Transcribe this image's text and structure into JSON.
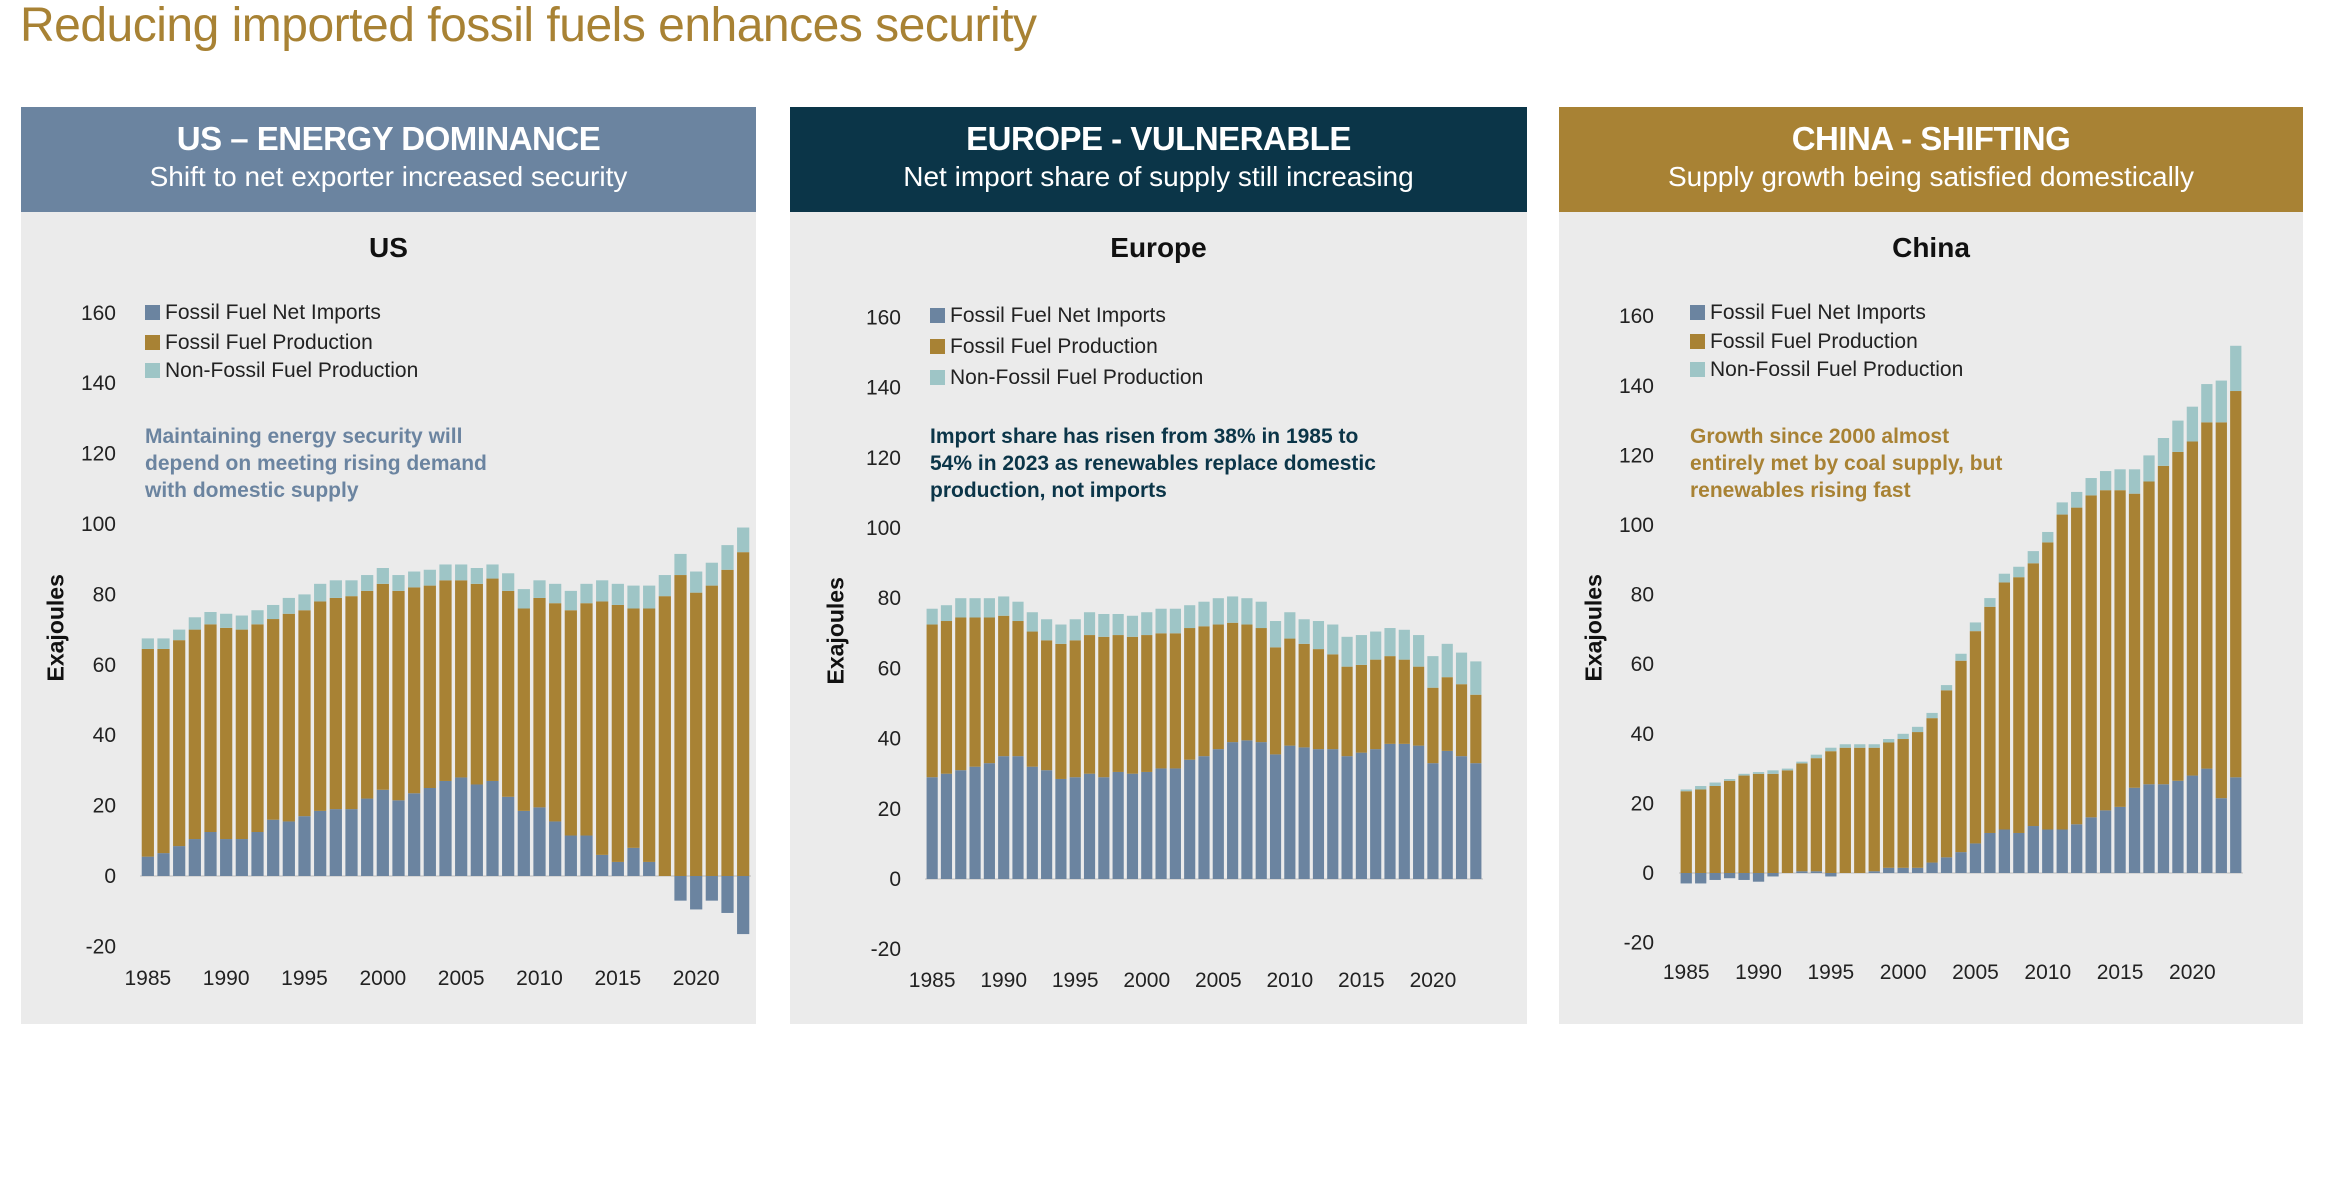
{
  "title": "Reducing imported fossil fuels enhances security",
  "colors": {
    "imports": "#6b84a0",
    "fossil": "#a88234",
    "nonfossil": "#9ec5c6",
    "us_header": "#6b84a0",
    "europe_header": "#0b3548",
    "china_header": "#a88234",
    "panel_bg": "#ebebeb"
  },
  "panels": [
    {
      "header_title": "US – ENERGY DOMINANCE",
      "header_subtitle": "Shift to net exporter increased security",
      "annotation": [
        "Maintaining energy security will",
        "depend on meeting rising demand",
        "with domestic supply"
      ]
    },
    {
      "header_title": "EUROPE - VULNERABLE",
      "header_subtitle": "Net import share of supply still increasing",
      "annotation": [
        "Import share has risen from 38% in 1985 to",
        "54% in 2023 as renewables replace domestic",
        "production, not imports"
      ]
    },
    {
      "header_title": "CHINA - SHIFTING",
      "header_subtitle": "Supply growth being satisfied domestically",
      "annotation": [
        "Growth since 2000  almost",
        "entirely met by coal supply, but",
        "renewables rising fast"
      ]
    }
  ],
  "chart_data": [
    {
      "type": "bar",
      "stacked": true,
      "title": "US",
      "ylabel": "Exajoules",
      "ylim": [
        -20,
        160
      ],
      "yticks": [
        -20,
        0,
        20,
        40,
        60,
        80,
        100,
        120,
        140,
        160
      ],
      "xtick_labels": [
        "1985",
        "1990",
        "1995",
        "2000",
        "2005",
        "2010",
        "2015",
        "2020"
      ],
      "x": [
        1985,
        1986,
        1987,
        1988,
        1989,
        1990,
        1991,
        1992,
        1993,
        1994,
        1995,
        1996,
        1997,
        1998,
        1999,
        2000,
        2001,
        2002,
        2003,
        2004,
        2005,
        2006,
        2007,
        2008,
        2009,
        2010,
        2011,
        2012,
        2013,
        2014,
        2015,
        2016,
        2017,
        2018,
        2019,
        2020,
        2021,
        2022,
        2023
      ],
      "legend": "top-left",
      "series": [
        {
          "name": "Fossil Fuel Net Imports",
          "values": [
            5.5,
            6.5,
            8.5,
            10.5,
            12.5,
            10.5,
            10.5,
            12.5,
            16,
            15.5,
            17,
            18.5,
            19,
            19,
            22,
            24.5,
            21.5,
            23.5,
            25,
            27,
            28,
            26,
            27,
            22.5,
            18.5,
            19.5,
            15.5,
            11.5,
            11.5,
            6,
            4,
            8,
            4,
            0,
            -7,
            -9.5,
            -7,
            -10.5,
            -16.5
          ]
        },
        {
          "name": "Fossil Fuel Production",
          "values": [
            59,
            58,
            58.5,
            59.5,
            59,
            60,
            59.5,
            59,
            57,
            59,
            58.5,
            59.5,
            60,
            60.5,
            59,
            58.5,
            59.5,
            58.5,
            57.5,
            57,
            56,
            57,
            57.5,
            58.5,
            57.5,
            59.5,
            62,
            64,
            66,
            72,
            73,
            68,
            72,
            79.5,
            85.5,
            80.5,
            82.5,
            87,
            92
          ]
        },
        {
          "name": "Non-Fossil Fuel Production",
          "values": [
            3,
            3,
            3,
            3.5,
            3.5,
            4,
            4,
            4,
            4,
            4.5,
            4.5,
            5,
            5,
            4.5,
            4.5,
            4.5,
            4.5,
            4.5,
            4.5,
            4.5,
            4.5,
            4.5,
            4,
            5,
            5.5,
            5,
            5.5,
            5.5,
            5.5,
            6,
            6,
            6.5,
            6.5,
            6,
            6,
            6,
            6.5,
            7,
            7
          ]
        }
      ]
    },
    {
      "type": "bar",
      "stacked": true,
      "title": "Europe",
      "ylabel": "Exajoules",
      "ylim": [
        -20,
        160
      ],
      "yticks": [
        -20,
        0,
        20,
        40,
        60,
        80,
        100,
        120,
        140,
        160
      ],
      "xtick_labels": [
        "1985",
        "1990",
        "1995",
        "2000",
        "2005",
        "2010",
        "2015",
        "2020"
      ],
      "x": [
        1985,
        1986,
        1987,
        1988,
        1989,
        1990,
        1991,
        1992,
        1993,
        1994,
        1995,
        1996,
        1997,
        1998,
        1999,
        2000,
        2001,
        2002,
        2003,
        2004,
        2005,
        2006,
        2007,
        2008,
        2009,
        2010,
        2011,
        2012,
        2013,
        2014,
        2015,
        2016,
        2017,
        2018,
        2019,
        2020,
        2021,
        2022,
        2023
      ],
      "legend": "top-left",
      "series": [
        {
          "name": "Fossil Fuel Net Imports",
          "values": [
            29,
            30,
            31,
            32,
            33,
            35,
            35,
            32,
            31,
            28.5,
            29,
            30,
            29,
            30.5,
            30,
            30.5,
            31.5,
            31.5,
            34,
            35,
            37,
            39,
            39.5,
            39,
            35.5,
            38,
            37.5,
            37,
            37,
            35,
            36,
            37,
            38.5,
            38.5,
            38,
            33,
            36.5,
            35,
            33
          ]
        },
        {
          "name": "Fossil Fuel Production",
          "values": [
            43.5,
            43.5,
            43.5,
            42.5,
            41.5,
            40,
            38.5,
            38.5,
            37,
            38.5,
            39,
            39.5,
            40,
            39,
            39,
            39,
            38.5,
            38.5,
            37.5,
            37,
            35.5,
            34,
            33,
            32.5,
            30.5,
            30.5,
            29.5,
            28.5,
            27,
            25.5,
            25,
            25.5,
            25,
            24,
            22.5,
            21.5,
            21,
            20.5,
            19.5
          ]
        },
        {
          "name": "Non-Fossil Fuel Production",
          "values": [
            4.5,
            4.5,
            5.5,
            5.5,
            5.5,
            5.5,
            5.5,
            5.5,
            6,
            5.5,
            6,
            6.5,
            6.5,
            6,
            6,
            6.5,
            7,
            7,
            6.5,
            7,
            7.5,
            7.5,
            7.5,
            7.5,
            7.5,
            7.5,
            7,
            8,
            8.5,
            8.5,
            8.5,
            8,
            8,
            8.5,
            9,
            9,
            9.5,
            9,
            9.5
          ]
        }
      ]
    },
    {
      "type": "bar",
      "stacked": true,
      "title": "China",
      "ylabel": "Exajoules",
      "ylim": [
        -20,
        160
      ],
      "yticks": [
        -20,
        0,
        20,
        40,
        60,
        80,
        100,
        120,
        140,
        160
      ],
      "xtick_labels": [
        "1985",
        "1990",
        "1995",
        "2000",
        "2005",
        "2010",
        "2015",
        "2020"
      ],
      "x": [
        1985,
        1986,
        1987,
        1988,
        1989,
        1990,
        1991,
        1992,
        1993,
        1994,
        1995,
        1996,
        1997,
        1998,
        1999,
        2000,
        2001,
        2002,
        2003,
        2004,
        2005,
        2006,
        2007,
        2008,
        2009,
        2010,
        2011,
        2012,
        2013,
        2014,
        2015,
        2016,
        2017,
        2018,
        2019,
        2020,
        2021,
        2022,
        2023
      ],
      "legend": "top-left",
      "series": [
        {
          "name": "Fossil Fuel Net Imports",
          "values": [
            -3,
            -3,
            -2,
            -1.5,
            -2,
            -2.5,
            -1,
            0,
            0.5,
            0.5,
            -1,
            0,
            0,
            0.5,
            1.5,
            1.5,
            1.5,
            3,
            4.5,
            6,
            8.5,
            11.5,
            12.5,
            11.5,
            13.5,
            12.5,
            12.5,
            14,
            16,
            18,
            19,
            24.5,
            25.5,
            25.5,
            26.5,
            28,
            30,
            21.5,
            27.5
          ]
        },
        {
          "name": "Fossil Fuel Production",
          "values": [
            23.5,
            24,
            25,
            26.5,
            28,
            28.5,
            28.5,
            29.5,
            31,
            32.5,
            35,
            36,
            36,
            35.5,
            36,
            37,
            39,
            41.5,
            48,
            55,
            61,
            65,
            71,
            73.5,
            75.5,
            82.5,
            90.5,
            91,
            92.5,
            92,
            91,
            84.5,
            87,
            91.5,
            94.5,
            96,
            99.5,
            108,
            111
          ]
        },
        {
          "name": "Non-Fossil Fuel Production",
          "values": [
            0.5,
            1,
            1,
            0.5,
            0.5,
            0.5,
            1,
            0.5,
            0.5,
            1,
            1,
            1,
            1,
            1,
            1,
            1.5,
            1.5,
            1.5,
            1.5,
            2,
            2.5,
            2.5,
            2.5,
            3,
            3.5,
            3,
            3.5,
            4.5,
            5,
            5.5,
            6,
            7,
            7.5,
            8,
            9,
            10,
            11,
            12,
            13
          ]
        }
      ]
    }
  ]
}
